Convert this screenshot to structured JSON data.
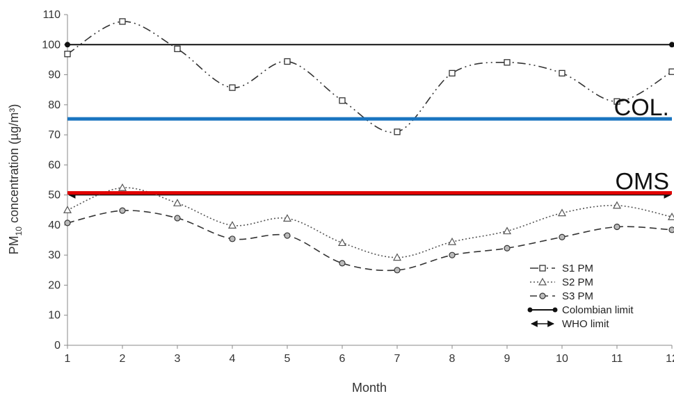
{
  "chart_data": {
    "type": "line",
    "xlabel": "Month",
    "ylabel_main": "PM",
    "ylabel_sub": "10",
    "ylabel_rest": " concentration (µg/m³)",
    "x": [
      1,
      2,
      3,
      4,
      5,
      6,
      7,
      8,
      9,
      10,
      11,
      12
    ],
    "x_tick_labels": [
      "1",
      "2",
      "3",
      "4",
      "5",
      "6",
      "7",
      "8",
      "9",
      "10",
      "11",
      "12"
    ],
    "ylim": [
      0,
      110
    ],
    "y_ticks": [
      0,
      10,
      20,
      30,
      40,
      50,
      60,
      70,
      80,
      90,
      100,
      110
    ],
    "y_tick_labels": [
      "0",
      "10",
      "20",
      "30",
      "40",
      "50",
      "60",
      "70",
      "80",
      "90",
      "100",
      "110"
    ],
    "grid": false,
    "legend_position": "bottom-right",
    "series": [
      {
        "name": "S1 PM",
        "marker": "square",
        "dash": "dashdotdot",
        "color": "#333333",
        "values": [
          96.9,
          107.7,
          98.6,
          85.7,
          94.4,
          81.4,
          71.0,
          90.5,
          94.1,
          90.5,
          81.1,
          91.0
        ]
      },
      {
        "name": "S2 PM",
        "marker": "triangle",
        "dash": "dotted",
        "color": "#555555",
        "values": [
          45.0,
          52.4,
          47.3,
          39.9,
          42.2,
          34.1,
          29.2,
          34.4,
          38.0,
          44.0,
          46.5,
          42.7
        ]
      },
      {
        "name": "S3 PM",
        "marker": "circle",
        "dash": "dashed",
        "color": "#333333",
        "values": [
          40.7,
          44.8,
          42.3,
          35.4,
          36.5,
          27.3,
          25.0,
          30.0,
          32.3,
          36.0,
          39.4,
          38.4
        ]
      }
    ],
    "reference_lines": [
      {
        "name": "Colombian limit",
        "value": 100,
        "style": "dots",
        "color": "#111111"
      },
      {
        "name": "WHO limit",
        "value": 50,
        "style": "arrows",
        "color": "#111111"
      }
    ],
    "overlay_lines": [
      {
        "label": "COL.",
        "value": 75.3,
        "color": "#1a75c0"
      },
      {
        "label": "OMS",
        "value": 50.7,
        "color": "#e00000"
      }
    ]
  }
}
